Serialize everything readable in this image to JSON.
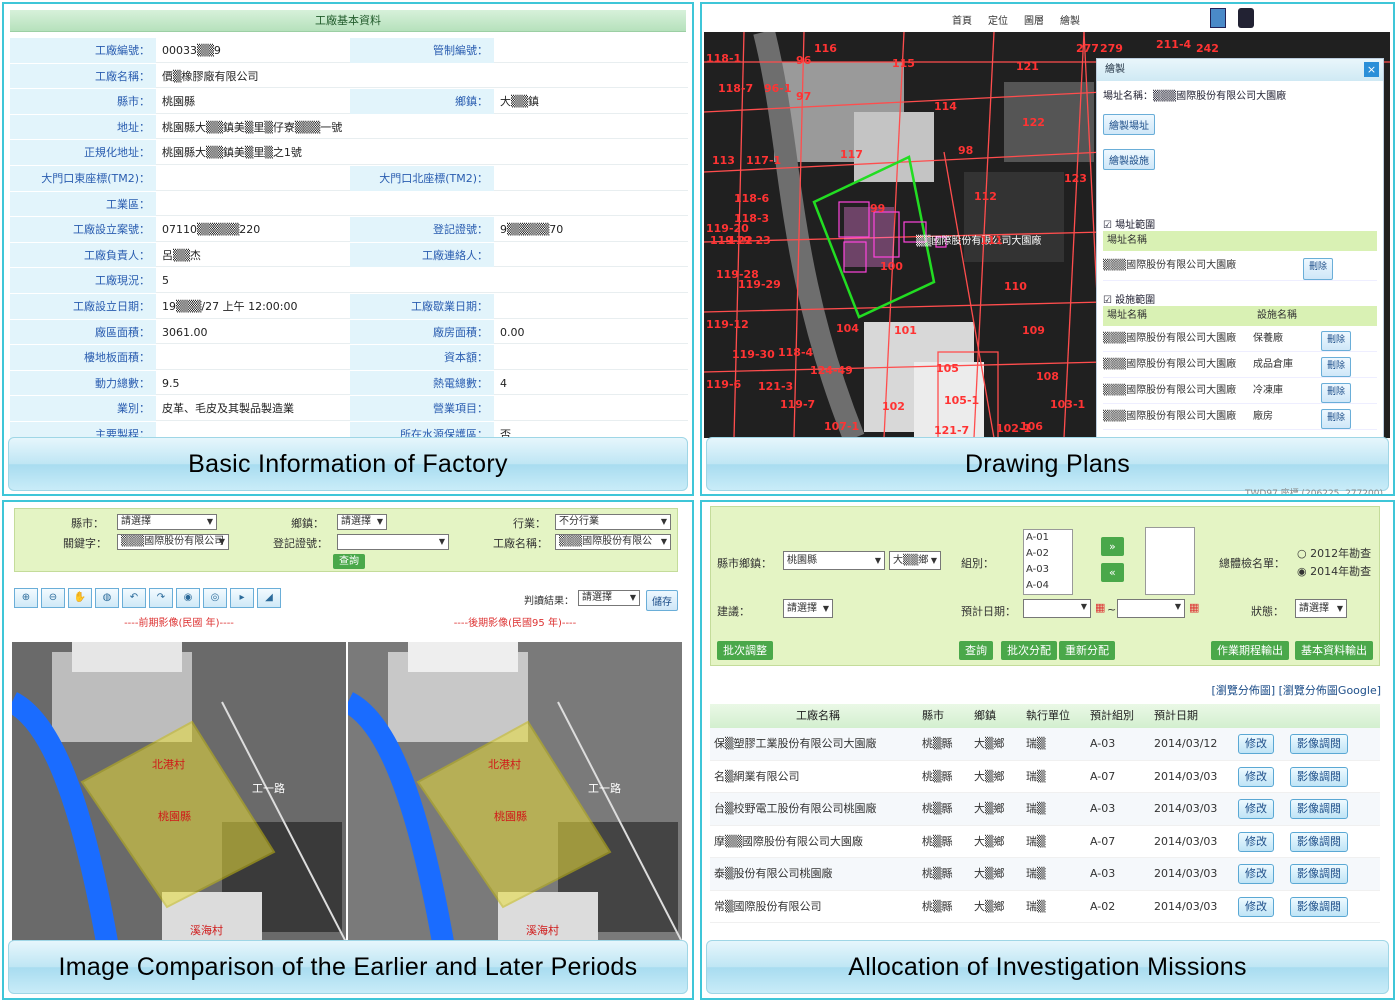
{
  "q1": {
    "title": "工廠基本資料",
    "rows": [
      {
        "l1": "工廠編號：",
        "v1": "00033▒▒9",
        "l2": "管制編號：",
        "v2": ""
      },
      {
        "l1": "工廠名稱：",
        "v1": "價▒橡膠廠有限公司",
        "full": true
      },
      {
        "l1": "縣市：",
        "v1": "桃園縣",
        "l2": "鄉鎮：",
        "v2": "大▒▒鎮"
      },
      {
        "l1": "地址：",
        "v1": "桃園縣大▒▒鎮美▒里▒仔寮▒▒▒一號",
        "full": true
      },
      {
        "l1": "正規化地址：",
        "v1": "桃園縣大▒▒鎮美▒里▒之1號",
        "full": true
      },
      {
        "l1": "大門口東座標(TM2)：",
        "v1": "",
        "l2": "大門口北座標(TM2)：",
        "v2": ""
      },
      {
        "l1": "工業區：",
        "v1": "",
        "full": true
      },
      {
        "l1": "工廠設立案號：",
        "v1": "07110▒▒▒▒▒220",
        "l2": "登記證號：",
        "v2": "9▒▒▒▒▒70"
      },
      {
        "l1": "工廠負責人：",
        "v1": "呂▒▒杰",
        "l2": "工廠連絡人：",
        "v2": ""
      },
      {
        "l1": "工廠現況：",
        "v1": "5",
        "full": true
      },
      {
        "l1": "工廠設立日期：",
        "v1": "19▒▒▒/27 上午 12:00:00",
        "l2": "工廠歇業日期：",
        "v2": ""
      },
      {
        "l1": "廠區面積：",
        "v1": "3061.00",
        "l2": "廠房面積：",
        "v2": "0.00"
      },
      {
        "l1": "樓地板面積：",
        "v1": "",
        "l2": "資本額：",
        "v2": ""
      },
      {
        "l1": "動力總數：",
        "v1": "9.5",
        "l2": "熱電總數：",
        "v2": "4"
      },
      {
        "l1": "業別：",
        "v1": "皮革、毛皮及其製品製造業",
        "l2": "營業項目：",
        "v2": ""
      },
      {
        "l1": "主要製程：",
        "v1": "",
        "l2": "所在水源保護區：",
        "v2": "否"
      }
    ],
    "caption": "Basic Information of Factory"
  },
  "q2": {
    "nav": [
      "首頁",
      "定位",
      "圖層",
      "繪製"
    ],
    "panel_title": "繪製",
    "site_name_label": "場址名稱：",
    "site_name": "▒▒▒國際股份有限公司大園廠",
    "btn_draw_site": "繪製場址",
    "btn_draw_facility": "繪製設施",
    "sec_site": "場址範圍",
    "col_site_name": "場址名稱",
    "site_row": "▒▒▒國際股份有限公司大園廠",
    "delete": "刪除",
    "sec_facility": "設施範圍",
    "col_facility_name": "設施名稱",
    "facility_rows": [
      {
        "site": "▒▒▒國際股份有限公司大園廠",
        "name": "保養廠"
      },
      {
        "site": "▒▒▒國際股份有限公司大園廠",
        "name": "成品倉庫"
      },
      {
        "site": "▒▒▒國際股份有限公司大園廠",
        "name": "冷凍庫"
      },
      {
        "site": "▒▒▒國際股份有限公司大園廠",
        "name": "廠房"
      }
    ],
    "map_label": "▒▒國際股份有限公司大園廠",
    "footer": "TWD97 座標 (206225, 277200)",
    "parcels": [
      "116",
      "96",
      "115",
      "121",
      "277",
      "279",
      "211-4",
      "242",
      "118-1",
      "118-7",
      "96-1",
      "97",
      "114",
      "122",
      "113",
      "98",
      "117",
      "117-1",
      "123",
      "112",
      "118-6",
      "118-3",
      "99",
      "111",
      "119-20",
      "119-22",
      "119-23",
      "100",
      "119-28",
      "119-29",
      "110",
      "119-12",
      "104",
      "101",
      "109",
      "119-30",
      "118-4",
      "105",
      "108",
      "121-3",
      "119-6",
      "124-49",
      "102",
      "105-1",
      "103-1",
      "119-7",
      "121-7",
      "106",
      "107-1",
      "102-1"
    ],
    "caption": "Drawing Plans"
  },
  "q3": {
    "county_label": "縣市：",
    "county_val": "請選擇",
    "town_label": "鄉鎮：",
    "town_val": "請選擇",
    "industry_label": "行業：",
    "industry_val": "不分行業",
    "keyword_label": "關鍵字：",
    "keyword_val": "▒▒▒國際股份有限公司大",
    "reg_label": "登記證號：",
    "reg_val": "",
    "factory_label": "工廠名稱：",
    "factory_val": "▒▒▒國際股份有限公",
    "query": "查詢",
    "result_label": "判讀結果：",
    "result_val": "請選擇",
    "save": "儲存",
    "left_title": "----前期影像(民國 年)----",
    "right_title": "----後期影像(民國95 年)----",
    "map_labels": [
      "北港村",
      "桃園縣",
      "溪海村",
      "工一路"
    ],
    "caption": "Image Comparison of the Earlier and Later Periods"
  },
  "q4": {
    "county_town_label": "縣市鄉鎮：",
    "county_val": "桃園縣",
    "town_val": "大▒▒鄉",
    "group_label": "組別：",
    "groups": [
      "A-01",
      "A-02",
      "A-03",
      "A-04"
    ],
    "check_label": "總體檢名單：",
    "opt1": "2012年勘查",
    "opt2": "2014年勘查",
    "suggest_label": "建議：",
    "suggest_val": "請選擇",
    "date_label": "預計日期：",
    "tilde": "~",
    "status_label": "狀態：",
    "status_val": "請選擇",
    "btn_batch": "批次調整",
    "btn_query": "查詢",
    "btn_batch_assign": "批次分配",
    "btn_reassign": "重新分配",
    "btn_schedule": "作業期程輸出",
    "btn_basic": "基本資料輸出",
    "links": "[瀏覽分佈圖] [瀏覽分佈圖Google]",
    "headers": [
      "工廠名稱",
      "縣市",
      "鄉鎮",
      "執行單位",
      "預計組別",
      "預計日期",
      "",
      ""
    ],
    "rows": [
      {
        "name": "保▒塑膠工業股份有限公司大園廠",
        "county": "桃▒縣",
        "town": "大▒鄉",
        "unit": "瑞▒",
        "group": "A-03",
        "date": "2014/03/12"
      },
      {
        "name": "名▒網業有限公司",
        "county": "桃▒縣",
        "town": "大▒鄉",
        "unit": "瑞▒",
        "group": "A-07",
        "date": "2014/03/03"
      },
      {
        "name": "台▒校野電工股份有限公司桃園廠",
        "county": "桃▒縣",
        "town": "大▒鄉",
        "unit": "瑞▒",
        "group": "A-03",
        "date": "2014/03/03"
      },
      {
        "name": "摩▒▒國際股份有限公司大園廠",
        "county": "桃▒縣",
        "town": "大▒鄉",
        "unit": "瑞▒",
        "group": "A-07",
        "date": "2014/03/03"
      },
      {
        "name": "泰▒股份有限公司桃園廠",
        "county": "桃▒縣",
        "town": "大▒鄉",
        "unit": "瑞▒",
        "group": "A-03",
        "date": "2014/03/03"
      },
      {
        "name": "常▒國際股份有限公司",
        "county": "桃▒縣",
        "town": "大▒鄉",
        "unit": "瑞▒",
        "group": "A-02",
        "date": "2014/03/03"
      }
    ],
    "edit": "修改",
    "image": "影像調閱",
    "caption": "Allocation of Investigation Missions"
  }
}
